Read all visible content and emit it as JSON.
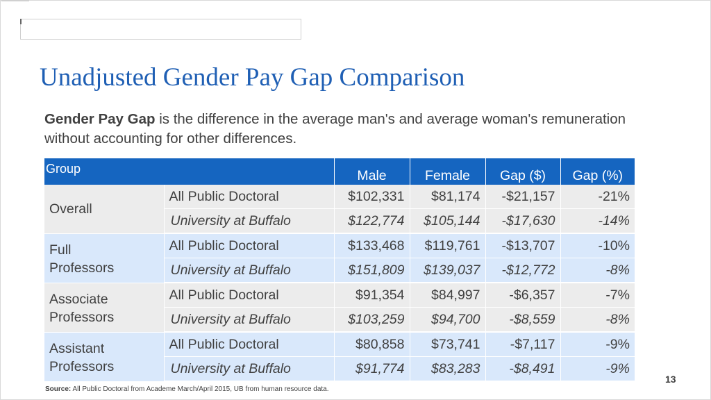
{
  "title": "Unadjusted Gender Pay Gap Comparison",
  "definition": {
    "term": "Gender Pay Gap",
    "text": " is the difference in the average man's and average woman's remuneration without accounting for other differences."
  },
  "table": {
    "headers": {
      "group": "Group",
      "male": "Male",
      "female": "Female",
      "gap_dollar": "Gap ($)",
      "gap_percent": "Gap (%)"
    },
    "groups": [
      {
        "name": "Overall",
        "rows": [
          {
            "institution": "All Public Doctoral",
            "male": "$102,331",
            "female": "$81,174",
            "gap_dollar": "-$21,157",
            "gap_percent": "-21%"
          },
          {
            "institution": "University at Buffalo",
            "male": "$122,774",
            "female": "$105,144",
            "gap_dollar": "-$17,630",
            "gap_percent": "-14%"
          }
        ]
      },
      {
        "name_line1": "Full",
        "name_line2": "Professors",
        "rows": [
          {
            "institution": "All Public Doctoral",
            "male": "$133,468",
            "female": "$119,761",
            "gap_dollar": "-$13,707",
            "gap_percent": "-10%"
          },
          {
            "institution": "University at Buffalo",
            "male": "$151,809",
            "female": "$139,037",
            "gap_dollar": "-$12,772",
            "gap_percent": "-8%"
          }
        ]
      },
      {
        "name_line1": "Associate",
        "name_line2": "Professors",
        "rows": [
          {
            "institution": "All Public Doctoral",
            "male": "$91,354",
            "female": "$84,997",
            "gap_dollar": "-$6,357",
            "gap_percent": "-7%"
          },
          {
            "institution": "University at Buffalo",
            "male": "$103,259",
            "female": "$94,700",
            "gap_dollar": "-$8,559",
            "gap_percent": "-8%"
          }
        ]
      },
      {
        "name_line1": "Assistant",
        "name_line2": "Professors",
        "rows": [
          {
            "institution": "All Public Doctoral",
            "male": "$80,858",
            "female": "$73,741",
            "gap_dollar": "-$7,117",
            "gap_percent": "-9%"
          },
          {
            "institution": "University at Buffalo",
            "male": "$91,774",
            "female": "$83,283",
            "gap_dollar": "-$8,491",
            "gap_percent": "-9%"
          }
        ]
      }
    ]
  },
  "source": {
    "label": "Source:",
    "text": " All Public Doctoral from Academe March/April 2015, UB from human resource data."
  },
  "page_number": "13",
  "colors": {
    "title": "#1f5fb4",
    "header_bg": "#1565c0",
    "row_gray": "#ececec",
    "row_blue": "#d9e8fb",
    "text": "#404040"
  }
}
